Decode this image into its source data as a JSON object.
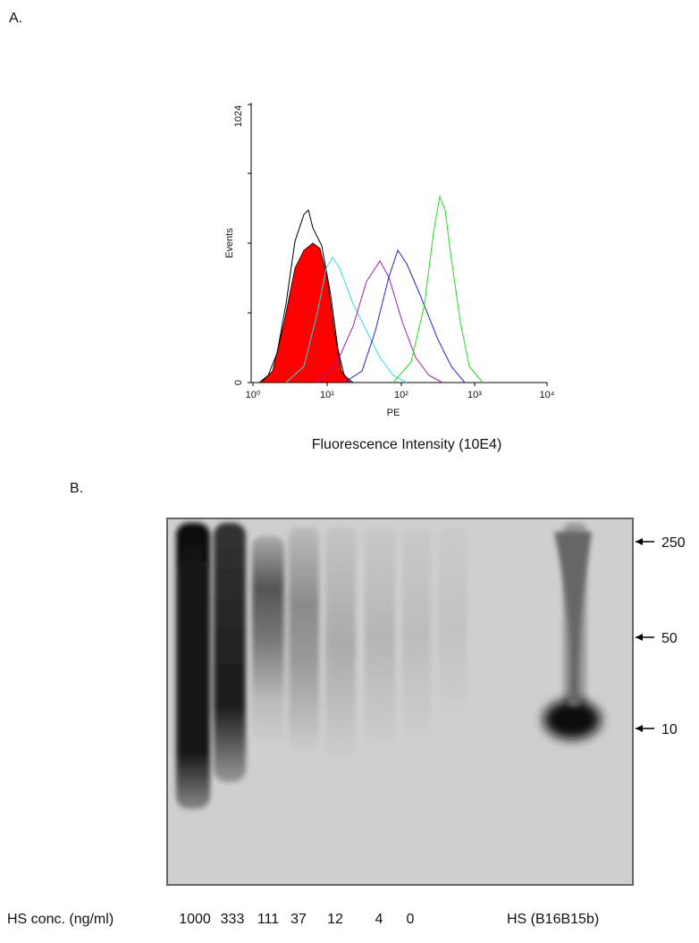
{
  "panel_a": {
    "label": "A.",
    "y_axis_label": "Events",
    "y_ticks": [
      "1024",
      "0"
    ],
    "x_axis_label": "PE",
    "x_ticks": [
      "10⁰",
      "10¹",
      "10²",
      "10³",
      "10⁴"
    ],
    "caption": "Fluorescence Intensity (10E4)"
  },
  "panel_b": {
    "label": "B.",
    "markers": [
      "250",
      "50",
      "10"
    ],
    "row_label": "HS conc. (ng/ml)",
    "lanes": [
      "1000",
      "333",
      "111",
      "37",
      "12",
      "4",
      "0"
    ],
    "control_label": "HS (B16B15b)"
  }
}
